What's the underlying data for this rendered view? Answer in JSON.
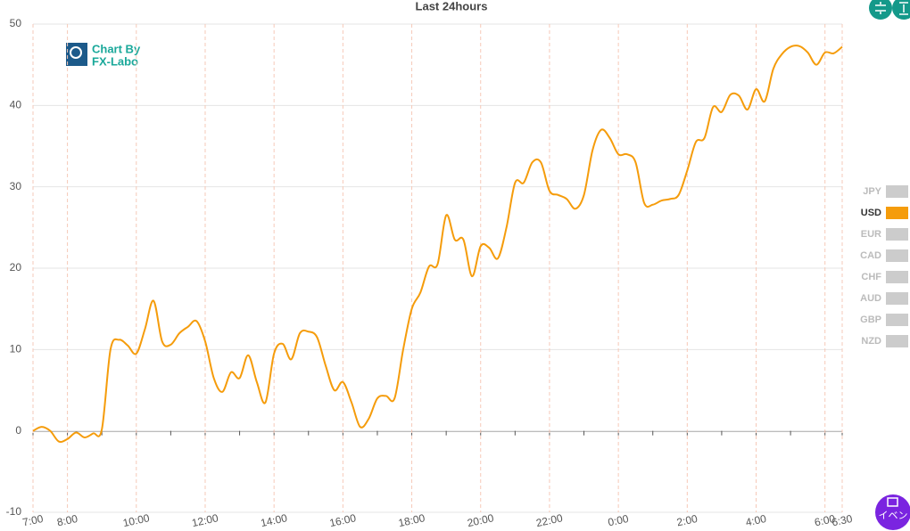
{
  "chart_data": {
    "type": "line",
    "title": "Last 24hours",
    "categories": [
      "7:00",
      null,
      null,
      null,
      "8:00",
      null,
      null,
      null,
      null,
      null,
      null,
      null,
      "10:00",
      null,
      null,
      null,
      null,
      null,
      null,
      null,
      "12:00",
      null,
      null,
      null,
      null,
      null,
      null,
      null,
      "14:00",
      null,
      null,
      null,
      null,
      null,
      null,
      null,
      "16:00",
      null,
      null,
      null,
      null,
      null,
      null,
      null,
      "18:00",
      null,
      null,
      null,
      null,
      null,
      null,
      null,
      "20:00",
      null,
      null,
      null,
      null,
      null,
      null,
      null,
      "22:00",
      null,
      null,
      null,
      null,
      null,
      null,
      null,
      "0:00",
      null,
      null,
      null,
      null,
      null,
      null,
      null,
      "2:00",
      null,
      null,
      null,
      null,
      null,
      null,
      null,
      "4:00",
      null,
      null,
      null,
      null,
      null,
      null,
      null,
      "6:00",
      null,
      "6:30"
    ],
    "series": [
      {
        "name": "USD",
        "color": "#f59c0b",
        "values": [
          0,
          0.5,
          0,
          -1.3,
          -1,
          -0.2,
          -0.8,
          -0.3,
          0.2,
          10,
          11.2,
          10.5,
          9.5,
          12.5,
          16,
          11,
          10.6,
          12,
          12.8,
          13.5,
          11,
          6.5,
          4.8,
          7.2,
          6.5,
          9.3,
          6,
          3.5,
          9.5,
          10.7,
          8.8,
          12,
          12.2,
          11.5,
          8,
          5,
          6,
          3.5,
          0.5,
          1.5,
          4,
          4.3,
          4,
          10,
          15,
          17,
          20.2,
          20.5,
          26.5,
          23.5,
          23.5,
          19,
          22.7,
          22.5,
          21.2,
          25,
          30.5,
          30.5,
          33,
          33,
          29.5,
          29,
          28.5,
          27.3,
          29,
          34.5,
          37,
          36,
          34,
          34,
          33,
          28,
          27.8,
          28.3,
          28.5,
          29,
          32,
          35.5,
          36,
          39.8,
          39.2,
          41.3,
          41.2,
          39.5,
          42,
          40.5,
          44.5,
          46.3,
          47.2,
          47.3,
          46.5,
          45,
          46.5,
          46.4,
          47.2
        ]
      }
    ],
    "hidden_series": [
      {
        "name": "JPY",
        "color": "#cccccc"
      },
      {
        "name": "EUR",
        "color": "#cccccc"
      },
      {
        "name": "CAD",
        "color": "#cccccc"
      },
      {
        "name": "CHF",
        "color": "#cccccc"
      },
      {
        "name": "AUD",
        "color": "#cccccc"
      },
      {
        "name": "GBP",
        "color": "#cccccc"
      },
      {
        "name": "NZD",
        "color": "#cccccc"
      }
    ],
    "ylim": [
      -10,
      50
    ],
    "yticks": [
      -10,
      0,
      10,
      20,
      30,
      40,
      50
    ],
    "grid": true,
    "logo": [
      "Chart By",
      "FX-Labo"
    ],
    "event_button": "イベン"
  }
}
